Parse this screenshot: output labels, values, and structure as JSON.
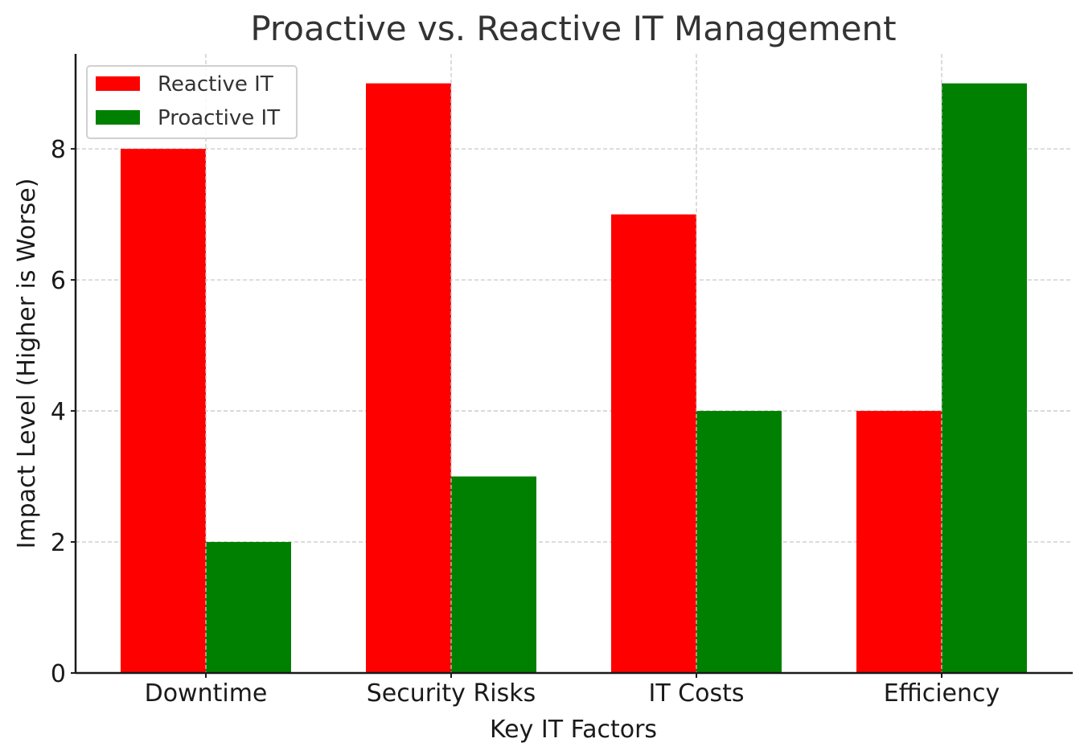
{
  "chart_data": {
    "type": "bar",
    "title": "Proactive vs. Reactive IT Management",
    "xlabel": "Key IT Factors",
    "ylabel": "Impact Level (Higher is Worse)",
    "categories": [
      "Downtime",
      "Security Risks",
      "IT Costs",
      "Efficiency"
    ],
    "series": [
      {
        "name": "Reactive IT",
        "color": "#ff0000",
        "values": [
          8,
          9,
          7,
          4
        ]
      },
      {
        "name": "Proactive IT",
        "color": "#008000",
        "values": [
          2,
          3,
          4,
          9
        ]
      }
    ],
    "ylim": [
      0,
      9.45
    ],
    "yticks": [
      0,
      2,
      4,
      6,
      8
    ],
    "grid": true,
    "legend_position": "top-left"
  }
}
